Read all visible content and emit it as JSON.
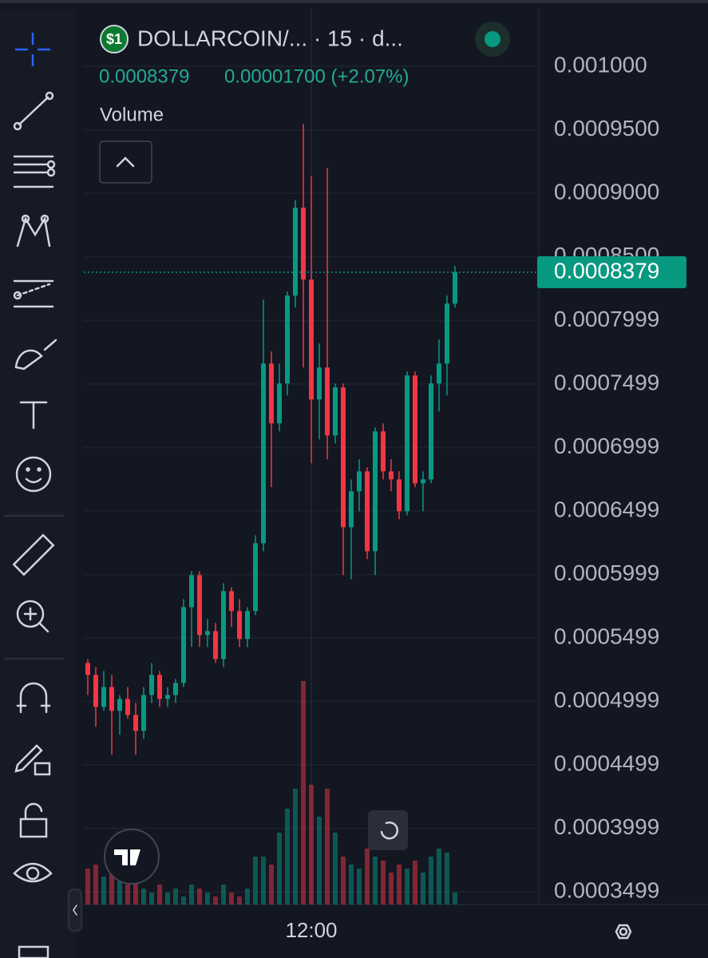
{
  "header": {
    "symbol": "DOLLARCOIN/... · 15 · d...",
    "change": "0.00001700 (+2.07%)"
  },
  "chart_data": {
    "type": "candlestick",
    "indicator_label": "Volume",
    "categories": [
      null,
      null,
      null,
      null,
      null,
      null,
      null,
      null,
      null,
      null,
      null,
      null,
      null,
      null,
      null,
      null,
      null,
      null,
      null,
      null,
      null,
      null,
      null,
      null,
      null,
      null,
      null,
      null,
      "12:00",
      null,
      null,
      null,
      null,
      null,
      null,
      null,
      null,
      null,
      null,
      null,
      null,
      null,
      null,
      null,
      null,
      null,
      null
    ],
    "open": [
      0.0005302,
      0.0005208,
      0.0004956,
      0.0005113,
      0.0004925,
      0.0005019,
      0.0004893,
      0.0004767,
      0.000505,
      0.0005208,
      0.0005019,
      0.000505,
      0.0005145,
      0.0005742,
      0.0005994,
      0.0005522,
      0.0005553,
      0.0005333,
      0.0005868,
      0.0005711,
      0.0005491,
      0.0005711,
      0.0006245,
      0.000766,
      0.0007189,
      0.0007503,
      0.0008195,
      0.0008887,
      0.0008321,
      0.0007377,
      0.0007629,
      0.0007094,
      0.0007472,
      0.0006371,
      0.0006654,
      0.0006811,
      0.0006182,
      0.0007126,
      0.0006811,
      0.0006748,
      0.0006497,
      0.0007566,
      0.0006717,
      0.0006748,
      0.0007503,
      0.000766,
      0.0008132
    ],
    "high": [
      0.0005333,
      0.000527,
      0.0005239,
      0.0005208,
      0.000505,
      0.0005113,
      0.0004987,
      0.0005113,
      0.0005302,
      0.0005239,
      0.0005113,
      0.0005176,
      0.0005805,
      0.0006025,
      0.0006025,
      0.0005648,
      0.0005616,
      0.0005931,
      0.0005899,
      0.0005805,
      0.0005742,
      0.0006308,
      0.0008164,
      0.0007755,
      0.000766,
      0.0008226,
      0.000895,
      0.0009547,
      0.0009138,
      0.0007818,
      0.0009201,
      0.0007503,
      0.0007503,
      0.0006748,
      0.0006906,
      0.0006843,
      0.0007157,
      0.0007189,
      0.0006906,
      0.0006811,
      0.0007597,
      0.0007597,
      0.0006811,
      0.0007566,
      0.0007849,
      0.0008195,
      0.0008428
    ],
    "low": [
      0.000505,
      0.0004799,
      0.0004925,
      0.0004579,
      0.0004736,
      0.0004862,
      0.0004579,
      0.0004704,
      0.0004987,
      0.0004956,
      0.0004956,
      0.0004987,
      0.0005113,
      0.0005428,
      0.0005428,
      0.0005428,
      0.0005302,
      0.000527,
      0.0005585,
      0.0005428,
      0.0005428,
      0.0005679,
      0.0006182,
      0.0006686,
      0.0007126,
      0.0007409,
      0.0008101,
      0.0007629,
      0.0006874,
      0.0007063,
      0.0006906,
      0.0007031,
      0.0005994,
      0.0005962,
      0.0006497,
      0.000612,
      0.0005994,
      0.0006748,
      0.0006654,
      0.0006434,
      0.0006465,
      0.0006686,
      0.0006497,
      0.0006717,
      0.0007283,
      0.0007409,
      0.0008101
    ],
    "close": [
      0.0005208,
      0.0004956,
      0.0005113,
      0.0004925,
      0.0005019,
      0.0004893,
      0.0004767,
      0.000505,
      0.0005208,
      0.0005019,
      0.000505,
      0.0005145,
      0.0005742,
      0.0005994,
      0.0005522,
      0.0005553,
      0.0005333,
      0.0005868,
      0.0005711,
      0.0005491,
      0.0005711,
      0.0006245,
      0.000766,
      0.0007189,
      0.0007503,
      0.0008195,
      0.0008887,
      0.0008321,
      0.0007377,
      0.0007629,
      0.0007094,
      0.0007472,
      0.0006371,
      0.0006654,
      0.0006811,
      0.0006182,
      0.0007126,
      0.0006811,
      0.0006748,
      0.0006497,
      0.0007566,
      0.0006717,
      0.0006748,
      0.0007503,
      0.000766,
      0.0008132,
      0.0008379
    ],
    "volume": [
      45,
      50,
      35,
      40,
      30,
      25,
      35,
      20,
      15,
      25,
      15,
      20,
      10,
      25,
      20,
      15,
      10,
      25,
      15,
      10,
      20,
      60,
      60,
      50,
      90,
      120,
      145,
      280,
      150,
      110,
      145,
      90,
      60,
      50,
      45,
      70,
      60,
      55,
      40,
      50,
      45,
      55,
      40,
      60,
      70,
      65,
      15
    ],
    "up_color": "#089981",
    "down_color": "#f23645",
    "ylim": [
      0.00034,
      0.001046
    ],
    "yticks": [
      {
        "value": 0.001,
        "label": "0.001000"
      },
      {
        "value": 0.00095,
        "label": "0.0009500"
      },
      {
        "value": 0.0009,
        "label": "0.0009000"
      },
      {
        "value": 0.00085,
        "label": "0.0008500"
      },
      0.0007999,
      0.0007499,
      0.0006999,
      0.0006499,
      0.0005999,
      0.0005499,
      0.0004999,
      0.0004499,
      0.0003999,
      0.0003499
    ],
    "grid": true,
    "last_price_line": true
  }
}
